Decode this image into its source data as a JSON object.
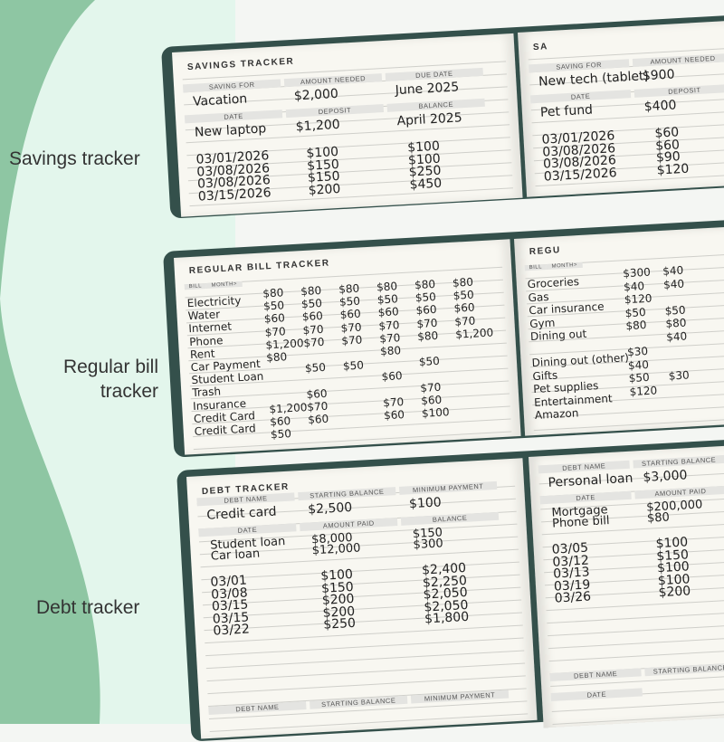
{
  "side_labels": [
    "Savings tracker",
    "Regular bill tracker",
    "Debt tracker"
  ],
  "savings": {
    "left": {
      "title": "SAVINGS TRACKER",
      "headers": [
        "SAVING FOR",
        "AMOUNT NEEDED",
        "DUE DATE"
      ],
      "values": [
        "Vacation",
        "$2,000",
        "June 2025"
      ],
      "headers2": [
        "DATE",
        "DEPOSIT",
        "BALANCE"
      ],
      "first_row": [
        "New laptop",
        "$1,200",
        "April 2025"
      ],
      "columns": [
        [
          "03/01/2026",
          "03/08/2026",
          "03/08/2026",
          "03/15/2026"
        ],
        [
          "$100",
          "$150",
          "$150",
          "$200"
        ],
        [
          "$100",
          "$100",
          "$250",
          "$450"
        ]
      ]
    },
    "right": {
      "title": "SA",
      "headers": [
        "SAVING FOR",
        "AMOUNT NEEDED"
      ],
      "values": [
        "New tech (tablet)",
        "$900"
      ],
      "headers2": [
        "DATE",
        "DEPOSIT"
      ],
      "first_row": [
        "Pet fund",
        "$400"
      ],
      "columns": [
        [
          "03/01/2026",
          "03/08/2026",
          "03/08/2026",
          "03/15/2026"
        ],
        [
          "$60",
          "$60",
          "$90",
          "$120"
        ]
      ]
    }
  },
  "bills": {
    "left": {
      "title": "REGULAR BILL TRACKER",
      "bill_header": "BILL",
      "month_header": "MONTH>",
      "rows": [
        {
          "name": "Electricity",
          "cells": [
            "$80",
            "$80",
            "$80",
            "$80",
            "$80",
            "$80"
          ]
        },
        {
          "name": "Water",
          "cells": [
            "$50",
            "$50",
            "$50",
            "$50",
            "$50",
            "$50"
          ]
        },
        {
          "name": "Internet",
          "cells": [
            "$60",
            "$60",
            "$60",
            "$60",
            "$60",
            "$60"
          ]
        },
        {
          "name": "Phone",
          "cells": [
            "$70",
            "$70",
            "$70",
            "$70",
            "$70",
            "$70"
          ]
        },
        {
          "name": "Rent",
          "cells": [
            "$1,200",
            "$70",
            "$70",
            "$70",
            "$80",
            "$1,200"
          ]
        },
        {
          "name": "Car Payment",
          "cells": [
            "$80",
            null,
            null,
            "$80",
            null,
            null
          ]
        },
        {
          "name": "Student Loan",
          "cells": [
            null,
            "$50",
            "$50",
            null,
            "$50",
            null
          ]
        },
        {
          "name": "Trash",
          "cells": [
            null,
            null,
            null,
            "$60",
            null,
            null
          ]
        },
        {
          "name": "Insurance",
          "cells": [
            null,
            "$60",
            null,
            null,
            "$70",
            null
          ]
        },
        {
          "name": "Credit Card",
          "cells": [
            "$1,200",
            "$70",
            null,
            "$70",
            "$60",
            null
          ]
        },
        {
          "name": "Credit Card",
          "cells": [
            "$60",
            "$60",
            null,
            "$60",
            "$100",
            null
          ]
        },
        {
          "name": null,
          "cells": [
            "$50",
            null,
            null,
            null,
            null,
            null
          ]
        }
      ]
    },
    "right": {
      "title": "REGU",
      "bill_header": "BILL",
      "month_header": "MONTH>",
      "rows": [
        {
          "name": "Groceries",
          "cells": [
            "$300",
            "$40"
          ]
        },
        {
          "name": "Gas",
          "cells": [
            "$40",
            "$40"
          ]
        },
        {
          "name": "Car insurance",
          "cells": [
            "$120",
            null
          ]
        },
        {
          "name": "Gym",
          "cells": [
            "$50",
            "$50"
          ]
        },
        {
          "name": "Dining out",
          "cells": [
            "$80",
            "$80"
          ]
        },
        {
          "name": null,
          "cells": [
            null,
            "$40"
          ]
        },
        {
          "name": "Dining out (other)",
          "cells": [
            "$30",
            null
          ]
        },
        {
          "name": "Gifts",
          "cells": [
            "$40",
            null
          ]
        },
        {
          "name": "Pet supplies",
          "cells": [
            "$50",
            "$30"
          ]
        },
        {
          "name": "Entertainment",
          "cells": [
            "$120",
            null
          ]
        },
        {
          "name": "Amazon",
          "cells": [
            null,
            null
          ]
        }
      ]
    }
  },
  "debt": {
    "left": {
      "title": "DEBT TRACKER",
      "headers": [
        "DEBT NAME",
        "STARTING BALANCE",
        "MINIMUM PAYMENT"
      ],
      "values": [
        "Credit card",
        "$2,500",
        "$100"
      ],
      "headers2": [
        "DATE",
        "AMOUNT PAID",
        "BALANCE"
      ],
      "extra_rows": [
        [
          "Student loan",
          "$8,000",
          "$150"
        ],
        [
          "Car loan",
          "$12,000",
          "$300"
        ]
      ],
      "columns": [
        [
          "03/01",
          "03/08",
          "03/15",
          "03/15",
          "03/22"
        ],
        [
          "$100",
          "$150",
          "$200",
          "$200",
          "$250"
        ],
        [
          "$2,400",
          "$2,250",
          "$2,050",
          "$2,050",
          "$1,800"
        ]
      ],
      "footer_headers": [
        "DEBT NAME",
        "STARTING BALANCE",
        "MINIMUM PAYMENT"
      ]
    },
    "right": {
      "headers": [
        "DEBT NAME",
        "STARTING BALANCE"
      ],
      "values": [
        "Personal loan",
        "$3,000"
      ],
      "headers2": [
        "DATE",
        "AMOUNT PAID"
      ],
      "extra_rows": [
        [
          "Mortgage",
          "$200,000"
        ],
        [
          "Phone bill",
          "$80"
        ]
      ],
      "columns": [
        [
          "03/05",
          "03/12",
          "03/13",
          "03/19",
          "03/26"
        ],
        [
          "$100",
          "$150",
          "$100",
          "$100",
          "$200"
        ]
      ],
      "footer_headers": [
        "DEBT NAME",
        "STARTING BALANCE"
      ],
      "footer_date": "DATE"
    }
  }
}
